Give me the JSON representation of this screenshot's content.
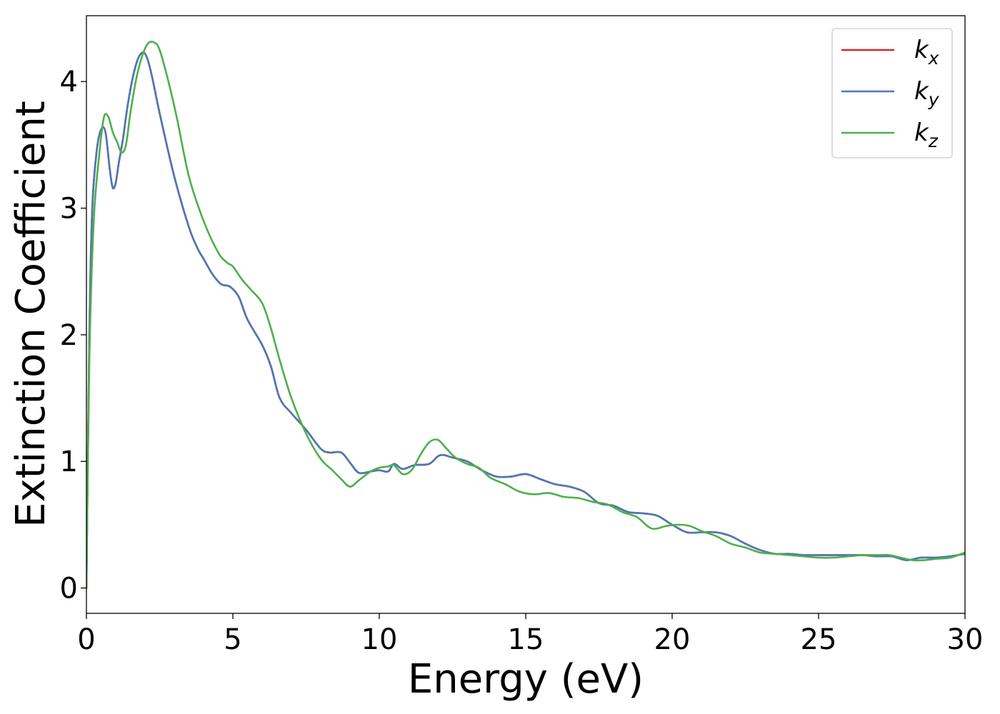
{
  "chart_data": {
    "type": "line",
    "xlabel": "Energy (eV)",
    "ylabel": "Extinction Coefficient",
    "xlim": [
      0,
      30
    ],
    "ylim": [
      -0.2,
      4.52
    ],
    "xticks": [
      0,
      5,
      10,
      15,
      20,
      25,
      30
    ],
    "yticks": [
      0,
      1,
      2,
      3,
      4
    ],
    "grid": false,
    "legend_position": "top-right",
    "series": [
      {
        "name": "k_x",
        "label_base": "k",
        "label_sub": "x",
        "color": "#d62728",
        "x": [
          0,
          0.1,
          0.2,
          0.35,
          0.5,
          0.65,
          0.8,
          0.9,
          1.0,
          1.1,
          1.25,
          1.4,
          1.6,
          1.8,
          2.0,
          2.2,
          2.5,
          3.0,
          3.5,
          3.8,
          4.0,
          4.3,
          4.6,
          4.9,
          5.2,
          5.5,
          6.0,
          6.3,
          6.6,
          7.0,
          7.5,
          8.0,
          8.3,
          8.7,
          9.0,
          9.3,
          9.7,
          10.0,
          10.3,
          10.5,
          10.8,
          11.2,
          11.7,
          12.0,
          12.2,
          12.5,
          13.0,
          13.5,
          14.0,
          14.5,
          15.0,
          15.5,
          16.0,
          16.5,
          17.0,
          17.5,
          18.0,
          18.5,
          19.0,
          19.5,
          20.0,
          20.5,
          21.0,
          21.5,
          22.0,
          22.5,
          23.0,
          23.5,
          24.0,
          24.5,
          25.0,
          25.5,
          26.0,
          26.5,
          27.0,
          27.5,
          28.0,
          28.5,
          29.0,
          29.5,
          30.0
        ],
        "values": [
          0.0,
          2.0,
          3.0,
          3.45,
          3.62,
          3.6,
          3.3,
          3.16,
          3.2,
          3.35,
          3.55,
          3.8,
          4.05,
          4.2,
          4.22,
          4.08,
          3.75,
          3.25,
          2.85,
          2.68,
          2.6,
          2.48,
          2.4,
          2.38,
          2.3,
          2.12,
          1.92,
          1.75,
          1.5,
          1.38,
          1.25,
          1.1,
          1.07,
          1.07,
          0.99,
          0.91,
          0.92,
          0.93,
          0.92,
          0.98,
          0.94,
          0.97,
          0.98,
          1.04,
          1.05,
          1.03,
          1.0,
          0.93,
          0.88,
          0.88,
          0.9,
          0.86,
          0.82,
          0.8,
          0.76,
          0.67,
          0.65,
          0.6,
          0.59,
          0.57,
          0.5,
          0.44,
          0.44,
          0.44,
          0.41,
          0.35,
          0.3,
          0.27,
          0.27,
          0.26,
          0.26,
          0.26,
          0.26,
          0.26,
          0.25,
          0.25,
          0.22,
          0.24,
          0.24,
          0.25,
          0.27
        ]
      },
      {
        "name": "k_y",
        "label_base": "k",
        "label_sub": "y",
        "color": "#4c78b5",
        "x": [
          0,
          0.1,
          0.2,
          0.35,
          0.5,
          0.65,
          0.8,
          0.9,
          1.0,
          1.1,
          1.25,
          1.4,
          1.6,
          1.8,
          2.0,
          2.2,
          2.5,
          3.0,
          3.5,
          3.8,
          4.0,
          4.3,
          4.6,
          4.9,
          5.2,
          5.5,
          6.0,
          6.3,
          6.6,
          7.0,
          7.5,
          8.0,
          8.3,
          8.7,
          9.0,
          9.3,
          9.7,
          10.0,
          10.3,
          10.5,
          10.8,
          11.2,
          11.7,
          12.0,
          12.2,
          12.5,
          13.0,
          13.5,
          14.0,
          14.5,
          15.0,
          15.5,
          16.0,
          16.5,
          17.0,
          17.5,
          18.0,
          18.5,
          19.0,
          19.5,
          20.0,
          20.5,
          21.0,
          21.5,
          22.0,
          22.5,
          23.0,
          23.5,
          24.0,
          24.5,
          25.0,
          25.5,
          26.0,
          26.5,
          27.0,
          27.5,
          28.0,
          28.5,
          29.0,
          29.5,
          30.0
        ],
        "values": [
          0.0,
          2.0,
          3.0,
          3.45,
          3.62,
          3.6,
          3.3,
          3.16,
          3.2,
          3.35,
          3.55,
          3.8,
          4.05,
          4.2,
          4.22,
          4.08,
          3.75,
          3.25,
          2.85,
          2.68,
          2.6,
          2.48,
          2.4,
          2.38,
          2.3,
          2.12,
          1.92,
          1.75,
          1.5,
          1.38,
          1.25,
          1.1,
          1.07,
          1.07,
          0.99,
          0.91,
          0.92,
          0.93,
          0.92,
          0.98,
          0.94,
          0.97,
          0.98,
          1.04,
          1.05,
          1.03,
          1.0,
          0.93,
          0.88,
          0.88,
          0.9,
          0.86,
          0.82,
          0.8,
          0.76,
          0.67,
          0.65,
          0.6,
          0.59,
          0.57,
          0.5,
          0.44,
          0.44,
          0.44,
          0.41,
          0.35,
          0.3,
          0.27,
          0.27,
          0.26,
          0.26,
          0.26,
          0.26,
          0.26,
          0.25,
          0.25,
          0.22,
          0.24,
          0.24,
          0.25,
          0.27
        ]
      },
      {
        "name": "k_z",
        "label_base": "k",
        "label_sub": "z",
        "color": "#4daf4a",
        "x": [
          0,
          0.1,
          0.25,
          0.45,
          0.6,
          0.75,
          0.9,
          1.05,
          1.2,
          1.35,
          1.5,
          1.7,
          1.9,
          2.1,
          2.3,
          2.5,
          2.8,
          3.1,
          3.5,
          4.0,
          4.5,
          4.8,
          5.0,
          5.3,
          5.6,
          6.0,
          6.3,
          6.6,
          7.0,
          7.5,
          8.0,
          8.4,
          8.7,
          9.0,
          9.3,
          9.7,
          10.0,
          10.3,
          10.5,
          10.8,
          11.1,
          11.4,
          11.7,
          12.0,
          12.3,
          12.6,
          13.0,
          13.4,
          13.8,
          14.3,
          14.8,
          15.3,
          15.8,
          16.3,
          16.8,
          17.3,
          17.8,
          18.3,
          18.8,
          19.3,
          19.8,
          20.2,
          20.6,
          21.0,
          21.5,
          22.0,
          22.5,
          23.0,
          23.5,
          24.0,
          24.5,
          25.0,
          25.5,
          26.0,
          26.5,
          27.0,
          27.4,
          27.8,
          28.2,
          28.6,
          29.0,
          29.5,
          30.0
        ],
        "values": [
          0.0,
          1.8,
          2.9,
          3.45,
          3.72,
          3.72,
          3.6,
          3.52,
          3.44,
          3.5,
          3.75,
          4.02,
          4.2,
          4.3,
          4.31,
          4.25,
          4.0,
          3.7,
          3.25,
          2.9,
          2.65,
          2.57,
          2.54,
          2.44,
          2.36,
          2.25,
          2.05,
          1.8,
          1.5,
          1.22,
          1.02,
          0.93,
          0.86,
          0.8,
          0.85,
          0.92,
          0.95,
          0.96,
          0.97,
          0.9,
          0.93,
          1.05,
          1.15,
          1.17,
          1.1,
          1.03,
          0.98,
          0.95,
          0.87,
          0.82,
          0.76,
          0.74,
          0.75,
          0.72,
          0.71,
          0.68,
          0.66,
          0.6,
          0.56,
          0.47,
          0.49,
          0.5,
          0.49,
          0.45,
          0.41,
          0.35,
          0.32,
          0.28,
          0.27,
          0.26,
          0.25,
          0.24,
          0.24,
          0.25,
          0.26,
          0.26,
          0.26,
          0.24,
          0.22,
          0.22,
          0.23,
          0.24,
          0.28
        ]
      }
    ]
  }
}
